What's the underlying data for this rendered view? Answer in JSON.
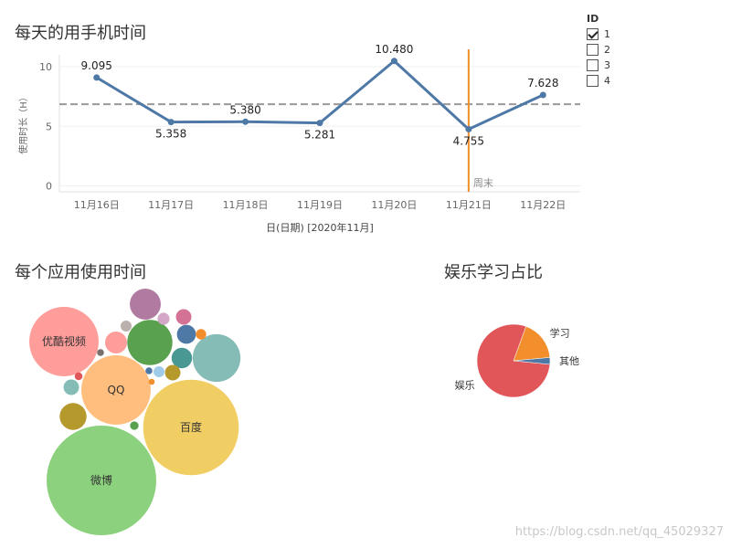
{
  "titles": {
    "line": "每天的用手机时间",
    "bubble": "每个应用使用时间",
    "pie": "娱乐学习占比"
  },
  "legend": {
    "title": "ID",
    "items": [
      {
        "label": "1",
        "checked": true
      },
      {
        "label": "2",
        "checked": false
      },
      {
        "label": "3",
        "checked": false
      },
      {
        "label": "4",
        "checked": false
      }
    ]
  },
  "watermark": "https://blog.csdn.net/qq_45029327",
  "chart_data": [
    {
      "type": "line",
      "title": "每天的用手机时间",
      "categories": [
        "11月16日",
        "11月17日",
        "11月18日",
        "11月19日",
        "11月20日",
        "11月21日",
        "11月22日"
      ],
      "values": [
        9.095,
        5.358,
        5.38,
        5.281,
        10.48,
        4.755,
        7.628
      ],
      "value_labels": [
        "9.095",
        "5.358",
        "5.380",
        "5.281",
        "10.480",
        "4.755",
        "7.628"
      ],
      "xlabel": "日(日期) [2020年11月]",
      "ylabel": "使用时长（H）",
      "yticks": [
        0,
        5,
        10
      ],
      "ylim": [
        -0.5,
        11
      ],
      "reference_line": {
        "value": 6.85,
        "style": "dashed"
      },
      "marker": {
        "label": "周末",
        "category": "11月21日",
        "color": "#F28E2B"
      },
      "line_color": "#4E79A7"
    },
    {
      "type": "bubble",
      "title": "每个应用使用时间",
      "bubbles": [
        {
          "label": "微博",
          "size": 100,
          "color": "#8CD17D"
        },
        {
          "label": "百度",
          "size": 76,
          "color": "#F1CE63"
        },
        {
          "label": "QQ",
          "size": 40,
          "color": "#FFBE7D"
        },
        {
          "label": "优酷视频",
          "size": 40,
          "color": "#FF9D9A"
        },
        {
          "label": "",
          "size": 19,
          "color": "#86BCB6"
        },
        {
          "label": "",
          "size": 17,
          "color": "#59A14F"
        },
        {
          "label": "",
          "size": 8,
          "color": "#B07AA1"
        },
        {
          "label": "",
          "size": 6,
          "color": "#B6992D"
        },
        {
          "label": "",
          "size": 4,
          "color": "#FF9D9A"
        },
        {
          "label": "",
          "size": 3.5,
          "color": "#499894"
        },
        {
          "label": "",
          "size": 3,
          "color": "#4E79A7"
        },
        {
          "label": "",
          "size": 2,
          "color": "#D37295"
        },
        {
          "label": "",
          "size": 2,
          "color": "#86BCB6"
        },
        {
          "label": "",
          "size": 2,
          "color": "#B6992D"
        },
        {
          "label": "",
          "size": 1.2,
          "color": "#D4A6C8"
        },
        {
          "label": "",
          "size": 1,
          "color": "#BAB0AC"
        },
        {
          "label": "",
          "size": 1,
          "color": "#A0CBE8"
        },
        {
          "label": "",
          "size": 0.9,
          "color": "#F28E2B"
        },
        {
          "label": "",
          "size": 0.6,
          "color": "#59A14F"
        },
        {
          "label": "",
          "size": 0.5,
          "color": "#E15759"
        },
        {
          "label": "",
          "size": 0.4,
          "color": "#79706E"
        },
        {
          "label": "",
          "size": 0.4,
          "color": "#4E79A7"
        },
        {
          "label": "",
          "size": 0.3,
          "color": "#F28E2B"
        }
      ]
    },
    {
      "type": "pie",
      "title": "娱乐学习占比",
      "slices": [
        {
          "label": "娱乐",
          "value": 79,
          "color": "#E15759"
        },
        {
          "label": "学习",
          "value": 18,
          "color": "#F28E2B"
        },
        {
          "label": "其他",
          "value": 3,
          "color": "#4E79A7"
        }
      ]
    }
  ]
}
